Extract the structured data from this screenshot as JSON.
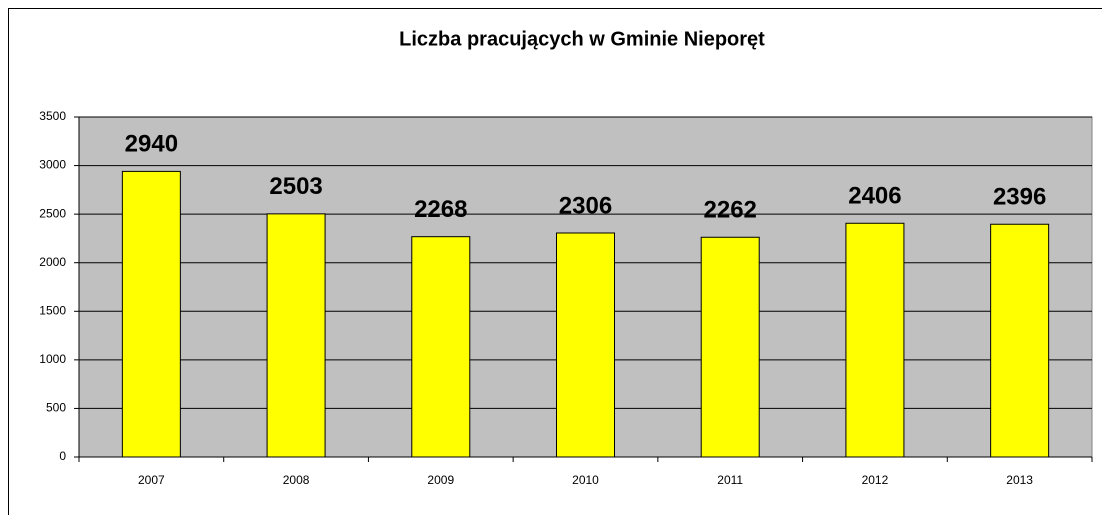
{
  "chart_data": {
    "type": "bar",
    "title": "Liczba pracujących w Gminie Nieporęt",
    "categories": [
      "2007",
      "2008",
      "2009",
      "2010",
      "2011",
      "2012",
      "2013"
    ],
    "values": [
      2940,
      2503,
      2268,
      2306,
      2262,
      2406,
      2396
    ],
    "color": "#ffff00",
    "plot_background": "#c0c0c0",
    "ylim": [
      0,
      3500
    ],
    "yticks": [
      0,
      500,
      1000,
      1500,
      2000,
      2500,
      3000,
      3500
    ],
    "grid": true
  }
}
